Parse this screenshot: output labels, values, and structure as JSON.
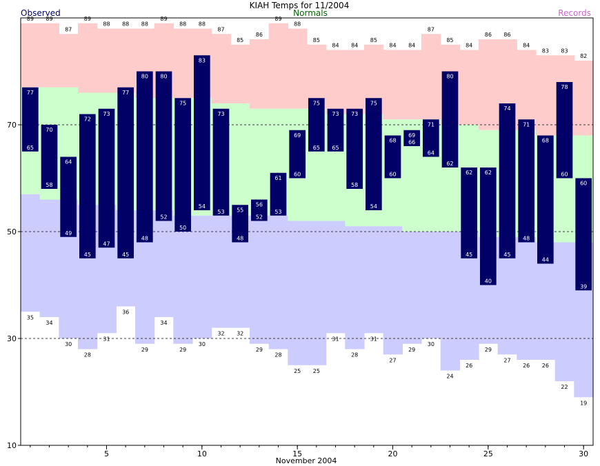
{
  "chart_data": {
    "type": "bar",
    "title": "KIAH Temps for 11/2004",
    "xlabel": "November 2004",
    "ylabel": "",
    "legend": [
      {
        "label": "Observed",
        "color": "#000066",
        "position": "top-left"
      },
      {
        "label": "Normals",
        "color": "#006600",
        "position": "top-center"
      },
      {
        "label": "Records",
        "color": "#cc66cc",
        "position": "top-right"
      }
    ],
    "colors": {
      "observed": "#000066",
      "normal": "#ccffcc",
      "record_high": "#ffcccc",
      "record_low": "#ccccff",
      "gridline": "#000000"
    },
    "ylim": [
      10,
      90
    ],
    "xlim": [
      0.5,
      30.5
    ],
    "x_ticks": [
      5,
      10,
      15,
      20,
      25,
      30
    ],
    "y_ticks": [
      10,
      30,
      50,
      70
    ],
    "grid": {
      "y_dashed": [
        30,
        50,
        70
      ]
    },
    "days": [
      1,
      2,
      3,
      4,
      5,
      6,
      7,
      8,
      9,
      10,
      11,
      12,
      13,
      14,
      15,
      16,
      17,
      18,
      19,
      20,
      21,
      22,
      23,
      24,
      25,
      26,
      27,
      28,
      29,
      30
    ],
    "observed_high": [
      77,
      70,
      64,
      72,
      73,
      77,
      80,
      80,
      75,
      83,
      73,
      55,
      56,
      61,
      69,
      75,
      73,
      73,
      75,
      68,
      69,
      71,
      80,
      62,
      62,
      74,
      71,
      68,
      78,
      60
    ],
    "observed_low": [
      65,
      58,
      49,
      45,
      47,
      45,
      48,
      52,
      50,
      54,
      53,
      48,
      52,
      53,
      60,
      65,
      65,
      58,
      54,
      60,
      66,
      64,
      62,
      45,
      40,
      45,
      48,
      44,
      60,
      39
    ],
    "normal_high": [
      77,
      77,
      77,
      76,
      76,
      76,
      75,
      75,
      75,
      75,
      74,
      74,
      73,
      73,
      73,
      73,
      72,
      72,
      72,
      71,
      71,
      71,
      70,
      70,
      69,
      69,
      69,
      68,
      68,
      68
    ],
    "normal_low": [
      57,
      56,
      56,
      55,
      55,
      54,
      54,
      54,
      53,
      53,
      53,
      53,
      53,
      53,
      52,
      52,
      52,
      51,
      51,
      51,
      50,
      50,
      50,
      50,
      49,
      49,
      49,
      48,
      48,
      48
    ],
    "record_high": [
      89,
      89,
      87,
      89,
      88,
      88,
      88,
      89,
      88,
      88,
      87,
      85,
      86,
      89,
      88,
      85,
      84,
      84,
      85,
      84,
      84,
      87,
      85,
      84,
      86,
      86,
      84,
      83,
      83,
      82
    ],
    "record_low": [
      35,
      34,
      30,
      28,
      31,
      36,
      29,
      34,
      29,
      30,
      32,
      32,
      29,
      28,
      25,
      25,
      31,
      28,
      31,
      27,
      29,
      30,
      24,
      26,
      29,
      27,
      26,
      26,
      22,
      19
    ]
  }
}
